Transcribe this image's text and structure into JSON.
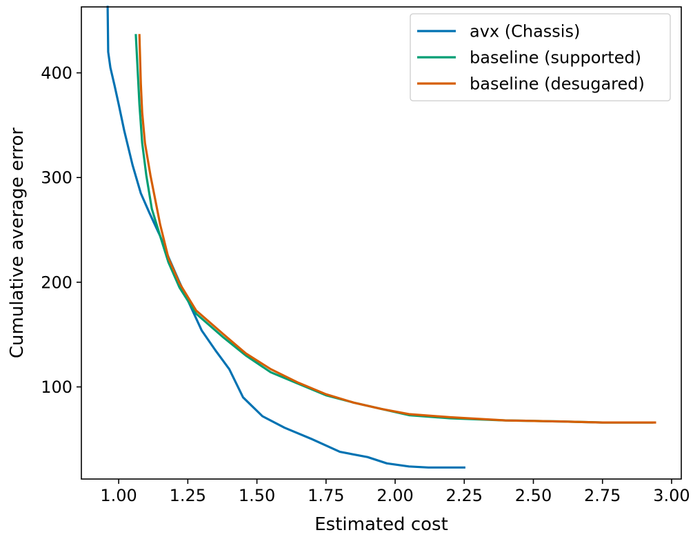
{
  "chart_data": {
    "type": "line",
    "title": "",
    "xlabel": "Estimated cost",
    "ylabel": "Cumulative average error",
    "xlim": [
      0.865,
      3.035
    ],
    "ylim": [
      12,
      463
    ],
    "xticks": [
      1.0,
      1.25,
      1.5,
      1.75,
      2.0,
      2.25,
      2.5,
      2.75,
      3.0
    ],
    "xtick_labels": [
      "1.00",
      "1.25",
      "1.50",
      "1.75",
      "2.00",
      "2.25",
      "2.50",
      "2.75",
      "3.00"
    ],
    "yticks": [
      100,
      200,
      300,
      400
    ],
    "ytick_labels": [
      "100",
      "200",
      "300",
      "400"
    ],
    "grid": false,
    "legend_position": "top-right",
    "series": [
      {
        "name": "avx (Chassis)",
        "color": "#0072b2",
        "x": [
          0.96,
          0.962,
          0.97,
          0.985,
          1.0,
          1.02,
          1.05,
          1.08,
          1.11,
          1.15,
          1.18,
          1.22,
          1.26,
          1.3,
          1.35,
          1.4,
          1.45,
          1.52,
          1.6,
          1.7,
          1.8,
          1.9,
          1.97,
          2.05,
          2.12,
          2.25
        ],
        "y": [
          463,
          420,
          405,
          388,
          370,
          345,
          312,
          285,
          267,
          244,
          224,
          200,
          177,
          154,
          135,
          117,
          90,
          72,
          61,
          50,
          38,
          33,
          27,
          24,
          23,
          23
        ]
      },
      {
        "name": "baseline (supported)",
        "color": "#009e73",
        "x": [
          1.062,
          1.075,
          1.085,
          1.1,
          1.12,
          1.15,
          1.18,
          1.22,
          1.28,
          1.38,
          1.46,
          1.55,
          1.65,
          1.75,
          1.85,
          1.95,
          2.05,
          2.2,
          2.4,
          2.6,
          2.75,
          2.93
        ],
        "y": [
          436,
          370,
          333,
          302,
          270,
          244,
          219,
          195,
          170,
          147,
          130,
          114,
          103,
          92,
          85,
          79,
          73,
          70,
          68,
          67,
          66,
          66
        ]
      },
      {
        "name": "baseline (desugared)",
        "color": "#d55e00",
        "x": [
          1.075,
          1.08,
          1.085,
          1.095,
          1.115,
          1.15,
          1.18,
          1.22,
          1.28,
          1.38,
          1.46,
          1.55,
          1.65,
          1.75,
          1.85,
          1.95,
          2.05,
          2.2,
          2.4,
          2.6,
          2.75,
          2.94
        ],
        "y": [
          436,
          390,
          362,
          333,
          302,
          255,
          223,
          199,
          173,
          150,
          132,
          117,
          104,
          93,
          85,
          79,
          74,
          71,
          68,
          67,
          66,
          66
        ]
      }
    ]
  }
}
